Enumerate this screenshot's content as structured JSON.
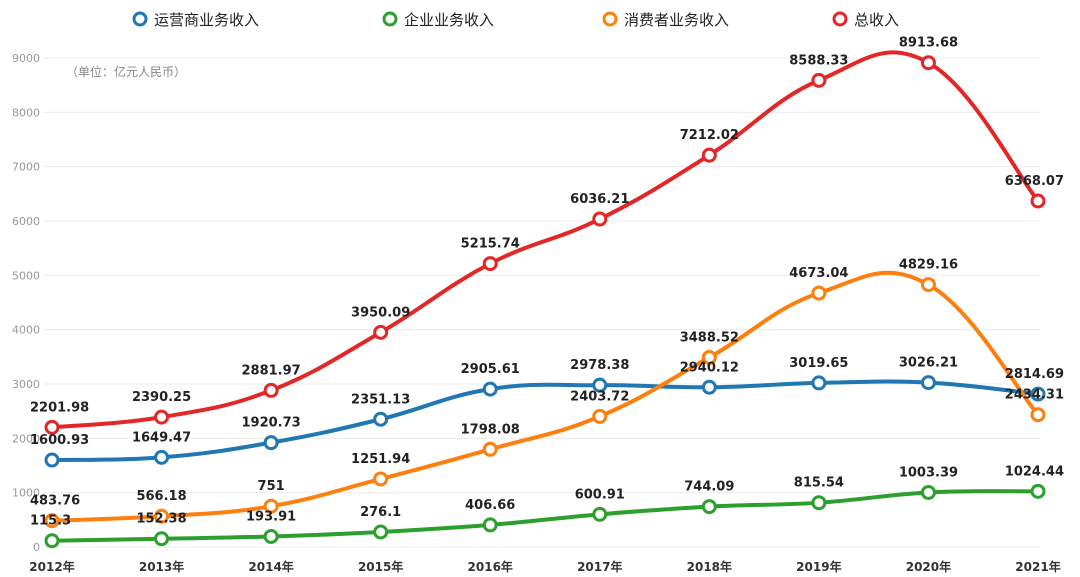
{
  "chart_data": {
    "type": "line",
    "categories": [
      "2012年",
      "2013年",
      "2014年",
      "2015年",
      "2016年",
      "2017年",
      "2018年",
      "2019年",
      "2020年",
      "2021年"
    ],
    "series": [
      {
        "name": "运营商业务收入",
        "color": "#1f77b4",
        "values": [
          1600.93,
          1649.47,
          1920.73,
          2351.13,
          2905.61,
          2978.38,
          2940.12,
          3019.65,
          3026.21,
          2814.69
        ],
        "labels": [
          "1600.93",
          "1649.47",
          "1920.73",
          "2351.13",
          "2905.61",
          "2978.38",
          "2940.12",
          "3019.65",
          "3026.21",
          "2814.69"
        ]
      },
      {
        "name": "企业业务收入",
        "color": "#2ca02c",
        "values": [
          115.3,
          152.38,
          193.91,
          276.1,
          406.66,
          600.91,
          744.09,
          815.54,
          1003.39,
          1024.44
        ],
        "labels": [
          "115.3",
          "152.38",
          "193.91",
          "276.1",
          "406.66",
          "600.91",
          "744.09",
          "815.54",
          "1003.39",
          "1024.44"
        ]
      },
      {
        "name": "消费者业务收入",
        "color": "#ff7f0e",
        "values": [
          483.76,
          566.18,
          751,
          1251.94,
          1798.08,
          2403.72,
          3488.52,
          4673.04,
          4829.16,
          2434.31
        ],
        "labels": [
          "483.76",
          "566.18",
          "751",
          "1251.94",
          "1798.08",
          "2403.72",
          "3488.52",
          "4673.04",
          "4829.16",
          "2434.31"
        ]
      },
      {
        "name": "总收入",
        "color": "#e32626",
        "values": [
          2201.98,
          2390.25,
          2881.97,
          3950.09,
          5215.74,
          6036.21,
          7212.02,
          8588.33,
          8913.68,
          6368.07
        ],
        "labels": [
          "2201.98",
          "2390.25",
          "2881.97",
          "3950.09",
          "5215.74",
          "6036.21",
          "7212.02",
          "8588.33",
          "8913.68",
          "6368.07"
        ]
      }
    ],
    "yticks": [
      "0",
      "1000",
      "2000",
      "3000",
      "4000",
      "5000",
      "6000",
      "7000",
      "8000",
      "9000"
    ],
    "ylim": [
      0,
      9000
    ],
    "unit_note": "（单位：亿元人民币）",
    "legend_position": "top",
    "grid": true
  }
}
